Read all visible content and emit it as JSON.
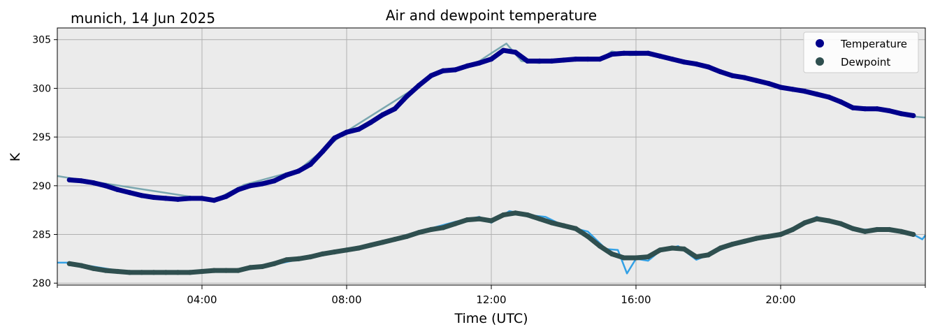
{
  "chart_data": {
    "type": "line",
    "title": "Air and dewpoint temperature",
    "subtitle": "munich, 14 Jun 2025",
    "xlabel": "Time (UTC)",
    "ylabel": "K",
    "xlim": [
      "00:00",
      "24:00"
    ],
    "ylim": [
      279.8,
      306.2
    ],
    "x_ticks": [
      "04:00",
      "08:00",
      "12:00",
      "16:00",
      "20:00"
    ],
    "y_ticks": [
      280,
      285,
      290,
      295,
      300,
      305
    ],
    "grid": true,
    "legend_position": "top-right",
    "background": "#ebebeb",
    "series": [
      {
        "name": "Temperature",
        "color": "#00008b",
        "raw_color": "#7aa7b0",
        "x": [
          "00:20",
          "00:40",
          "01:00",
          "01:20",
          "01:40",
          "02:00",
          "02:20",
          "02:40",
          "03:00",
          "03:20",
          "03:40",
          "04:00",
          "04:20",
          "04:40",
          "05:00",
          "05:20",
          "05:40",
          "06:00",
          "06:20",
          "06:40",
          "07:00",
          "07:20",
          "07:40",
          "08:00",
          "08:20",
          "08:40",
          "09:00",
          "09:20",
          "09:40",
          "10:00",
          "10:20",
          "10:40",
          "11:00",
          "11:20",
          "11:40",
          "12:00",
          "12:20",
          "12:40",
          "13:00",
          "13:20",
          "13:40",
          "14:00",
          "14:20",
          "14:40",
          "15:00",
          "15:20",
          "15:40",
          "16:00",
          "16:20",
          "16:40",
          "17:00",
          "17:20",
          "17:40",
          "18:00",
          "18:20",
          "18:40",
          "19:00",
          "19:20",
          "19:40",
          "20:00",
          "20:20",
          "20:40",
          "21:00",
          "21:20",
          "21:40",
          "22:00",
          "22:20",
          "22:40",
          "23:00",
          "23:20",
          "23:40"
        ],
        "values": [
          290.6,
          290.5,
          290.3,
          290.0,
          289.6,
          289.3,
          289.0,
          288.8,
          288.7,
          288.6,
          288.7,
          288.7,
          288.5,
          288.9,
          289.6,
          290.0,
          290.2,
          290.5,
          291.1,
          291.5,
          292.2,
          293.5,
          294.9,
          295.5,
          295.8,
          296.5,
          297.3,
          297.9,
          299.2,
          300.3,
          301.3,
          301.8,
          301.9,
          302.3,
          302.6,
          303.0,
          303.9,
          303.7,
          302.8,
          302.8,
          302.8,
          302.9,
          303.0,
          303.0,
          303.0,
          303.5,
          303.6,
          303.6,
          303.6,
          303.3,
          303.0,
          302.7,
          302.5,
          302.2,
          301.7,
          301.3,
          301.1,
          300.8,
          300.5,
          300.1,
          299.9,
          299.7,
          299.4,
          299.1,
          298.6,
          298.0,
          297.9,
          297.9,
          297.7,
          297.4,
          297.2
        ],
        "raw_x": [
          "00:00",
          "00:20",
          "04:20",
          "05:10",
          "06:40",
          "07:20",
          "08:00",
          "09:40",
          "10:30",
          "11:00",
          "11:40",
          "12:00",
          "12:25",
          "12:50",
          "13:20",
          "13:50",
          "14:30",
          "15:00",
          "15:20",
          "15:50",
          "16:30",
          "17:30",
          "18:00",
          "19:00",
          "20:00",
          "21:00",
          "22:00",
          "23:00",
          "23:40",
          "24:00"
        ],
        "raw_values": [
          291.0,
          290.8,
          288.5,
          290.1,
          291.6,
          293.6,
          295.6,
          299.5,
          301.5,
          301.9,
          302.8,
          303.6,
          304.6,
          302.8,
          302.6,
          303.0,
          302.9,
          303.0,
          303.8,
          303.4,
          303.5,
          302.5,
          302.2,
          301.1,
          300.0,
          299.4,
          298.0,
          297.6,
          297.1,
          297.0
        ]
      },
      {
        "name": "Dewpoint",
        "color": "#2f4f4f",
        "raw_color": "#33a1e6",
        "x": [
          "00:20",
          "00:40",
          "01:00",
          "01:20",
          "01:40",
          "02:00",
          "02:20",
          "02:40",
          "03:00",
          "03:20",
          "03:40",
          "04:00",
          "04:20",
          "04:40",
          "05:00",
          "05:20",
          "05:40",
          "06:00",
          "06:20",
          "06:40",
          "07:00",
          "07:20",
          "07:40",
          "08:00",
          "08:20",
          "08:40",
          "09:00",
          "09:20",
          "09:40",
          "10:00",
          "10:20",
          "10:40",
          "11:00",
          "11:20",
          "11:40",
          "12:00",
          "12:20",
          "12:40",
          "13:00",
          "13:20",
          "13:40",
          "14:00",
          "14:20",
          "14:40",
          "15:00",
          "15:20",
          "15:40",
          "16:00",
          "16:20",
          "16:40",
          "17:00",
          "17:20",
          "17:40",
          "18:00",
          "18:20",
          "18:40",
          "19:00",
          "19:20",
          "19:40",
          "20:00",
          "20:20",
          "20:40",
          "21:00",
          "21:20",
          "21:40",
          "22:00",
          "22:20",
          "22:40",
          "23:00",
          "23:20",
          "23:40"
        ],
        "values": [
          282.0,
          281.8,
          281.5,
          281.3,
          281.2,
          281.1,
          281.1,
          281.1,
          281.1,
          281.1,
          281.1,
          281.2,
          281.3,
          281.3,
          281.3,
          281.6,
          281.7,
          282.0,
          282.4,
          282.5,
          282.7,
          283.0,
          283.2,
          283.4,
          283.6,
          283.9,
          284.2,
          284.5,
          284.8,
          285.2,
          285.5,
          285.7,
          286.1,
          286.5,
          286.6,
          286.4,
          287.0,
          287.2,
          287.0,
          286.6,
          286.2,
          285.9,
          285.6,
          284.8,
          283.8,
          283.0,
          282.6,
          282.6,
          282.7,
          283.4,
          283.6,
          283.5,
          282.7,
          282.9,
          283.6,
          284.0,
          284.3,
          284.6,
          284.8,
          285.0,
          285.5,
          286.2,
          286.6,
          286.4,
          286.1,
          285.6,
          285.3,
          285.5,
          285.5,
          285.3,
          285.0
        ],
        "raw_x": [
          "00:00",
          "00:20",
          "02:00",
          "03:30",
          "05:00",
          "06:00",
          "07:00",
          "08:00",
          "09:00",
          "10:00",
          "11:00",
          "11:40",
          "12:00",
          "12:30",
          "13:00",
          "13:30",
          "14:00",
          "14:40",
          "15:10",
          "15:30",
          "15:45",
          "16:00",
          "16:20",
          "16:40",
          "17:10",
          "17:40",
          "18:00",
          "19:00",
          "20:00",
          "21:00",
          "22:00",
          "23:00",
          "23:40",
          "23:55",
          "24:00"
        ],
        "raw_values": [
          282.1,
          282.1,
          281.1,
          281.1,
          281.2,
          281.9,
          282.7,
          283.4,
          284.3,
          285.3,
          286.3,
          286.8,
          286.2,
          287.4,
          287.0,
          286.8,
          285.9,
          285.3,
          283.5,
          283.4,
          281.0,
          282.5,
          282.3,
          283.3,
          283.8,
          282.4,
          282.9,
          284.4,
          285.1,
          286.8,
          285.5,
          285.5,
          285.0,
          284.5,
          284.9
        ]
      }
    ]
  }
}
